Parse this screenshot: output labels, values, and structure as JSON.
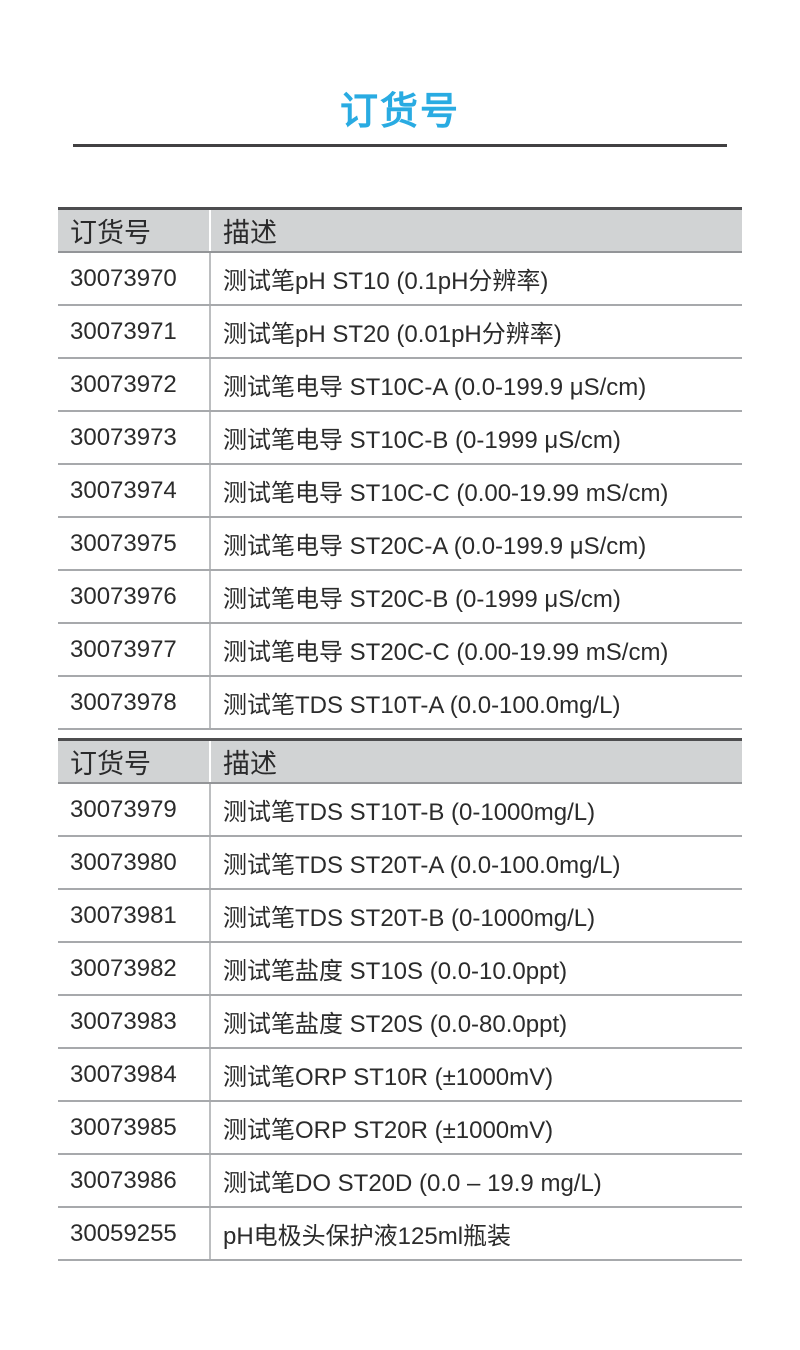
{
  "page": {
    "title": "订货号"
  },
  "colors": {
    "accent": "#29ABE2",
    "title_divider": "#414042",
    "header_bg": "#D1D3D4",
    "header_top_border": "#4D4D4F",
    "row_border": "#A7A9AC",
    "column_divider": "#BCBEC0",
    "text": "#2B2B2B"
  },
  "tables": [
    {
      "headers": [
        "订货号",
        "描述"
      ],
      "rows": [
        [
          "30073970",
          "测试笔pH ST10 (0.1pH分辨率)"
        ],
        [
          "30073971",
          "测试笔pH ST20 (0.01pH分辨率)"
        ],
        [
          "30073972",
          "测试笔电导 ST10C-A (0.0-199.9 μS/cm)"
        ],
        [
          "30073973",
          "测试笔电导 ST10C-B (0-1999 μS/cm)"
        ],
        [
          "30073974",
          "测试笔电导 ST10C-C (0.00-19.99 mS/cm)"
        ],
        [
          "30073975",
          "测试笔电导 ST20C-A (0.0-199.9 μS/cm)"
        ],
        [
          "30073976",
          "测试笔电导 ST20C-B (0-1999 μS/cm)"
        ],
        [
          "30073977",
          "测试笔电导 ST20C-C (0.00-19.99 mS/cm)"
        ],
        [
          "30073978",
          "测试笔TDS ST10T-A (0.0-100.0mg/L)"
        ]
      ]
    },
    {
      "headers": [
        "订货号",
        "描述"
      ],
      "rows": [
        [
          "30073979",
          "测试笔TDS ST10T-B (0-1000mg/L)"
        ],
        [
          "30073980",
          "测试笔TDS ST20T-A (0.0-100.0mg/L)"
        ],
        [
          "30073981",
          "测试笔TDS ST20T-B (0-1000mg/L)"
        ],
        [
          "30073982",
          "测试笔盐度 ST10S (0.0-10.0ppt)"
        ],
        [
          "30073983",
          "测试笔盐度 ST20S (0.0-80.0ppt)"
        ],
        [
          "30073984",
          "测试笔ORP ST10R (±1000mV)"
        ],
        [
          "30073985",
          "测试笔ORP ST20R (±1000mV)"
        ],
        [
          "30073986",
          "测试笔DO ST20D (0.0 – 19.9 mg/L)"
        ],
        [
          "30059255",
          "pH电极头保护液125ml瓶装"
        ]
      ]
    }
  ]
}
